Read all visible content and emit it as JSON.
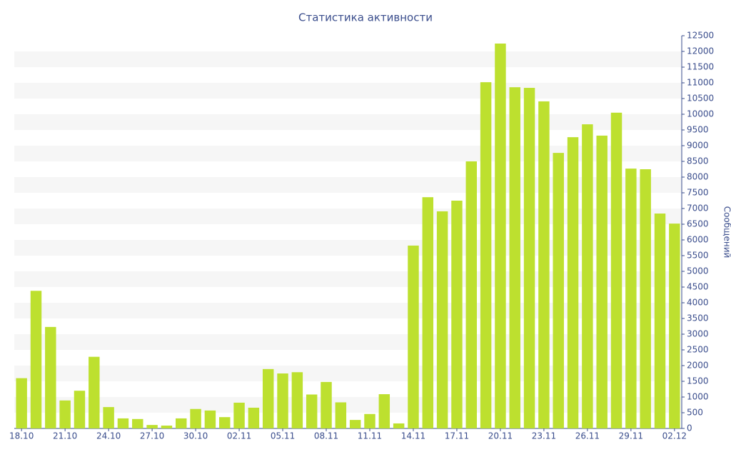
{
  "chart_data": {
    "type": "bar",
    "title": "Статистика активности",
    "y_label": "Сообщений",
    "categories": [
      "18.10",
      null,
      null,
      "21.10",
      null,
      null,
      "24.10",
      null,
      null,
      "27.10",
      null,
      null,
      "30.10",
      null,
      null,
      "02.11",
      null,
      null,
      "05.11",
      null,
      null,
      "08.11",
      null,
      null,
      "11.11",
      null,
      null,
      "14.11",
      null,
      null,
      "17.11",
      null,
      null,
      "20.11",
      null,
      null,
      "23.11",
      null,
      null,
      "26.11",
      null,
      null,
      "29.11",
      null,
      null,
      "02.12"
    ],
    "values": [
      1600,
      4380,
      3230,
      890,
      1200,
      2280,
      680,
      320,
      300,
      110,
      90,
      320,
      620,
      570,
      360,
      820,
      660,
      1890,
      1750,
      1790,
      1080,
      1480,
      830,
      270,
      460,
      1090,
      160,
      5820,
      7360,
      6910,
      7250,
      8500,
      11020,
      12250,
      10860,
      10840,
      10410,
      8770,
      9270,
      9680,
      9320,
      10050,
      8270,
      8250,
      6840,
      6520
    ],
    "color": "#bde02f",
    "ylim": [
      0,
      12500
    ],
    "yticks": [
      0,
      500,
      1000,
      1500,
      2000,
      2500,
      3000,
      3500,
      4000,
      4500,
      5000,
      5500,
      6000,
      6500,
      7000,
      7500,
      8000,
      8500,
      9000,
      9500,
      10000,
      10500,
      11000,
      11500,
      12000,
      12500
    ],
    "grid": true
  }
}
